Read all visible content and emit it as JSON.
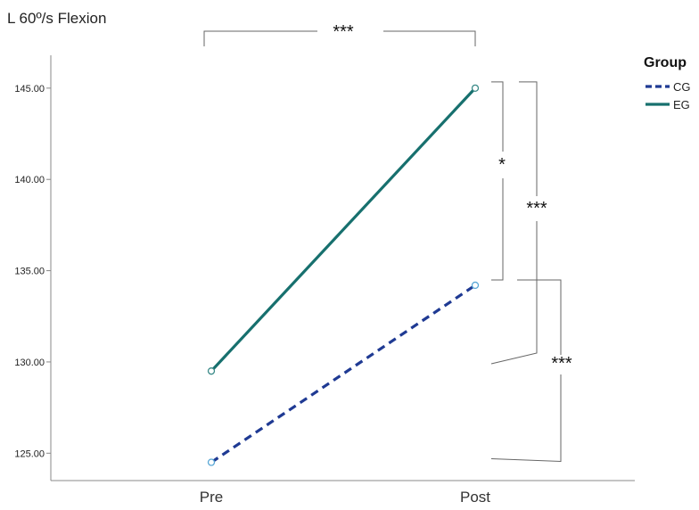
{
  "chart_data": {
    "type": "line",
    "title": "L  60º/s Flexion",
    "categories": [
      "Pre",
      "Post"
    ],
    "ylim": [
      123.5,
      146.8
    ],
    "yticks": [
      "125.00",
      "130.00",
      "135.00",
      "140.00",
      "145.00"
    ],
    "ytick_values": [
      125,
      130,
      135,
      140,
      145
    ],
    "grid": false,
    "legend": {
      "title": "Group",
      "placement": "top-right",
      "entries": [
        "CG",
        "EG"
      ]
    },
    "series": [
      {
        "name": "CG",
        "values": [
          124.5,
          134.2
        ],
        "color": "#1f3a93",
        "style": "dashed"
      },
      {
        "name": "EG",
        "values": [
          129.5,
          145.0
        ],
        "color": "#17706e",
        "style": "solid"
      }
    ],
    "annotations": {
      "pre_post_eg": "***",
      "post_group_diff": "*",
      "post_eg_vs_pre": "***",
      "post_cg_vs_pre": "***"
    }
  }
}
